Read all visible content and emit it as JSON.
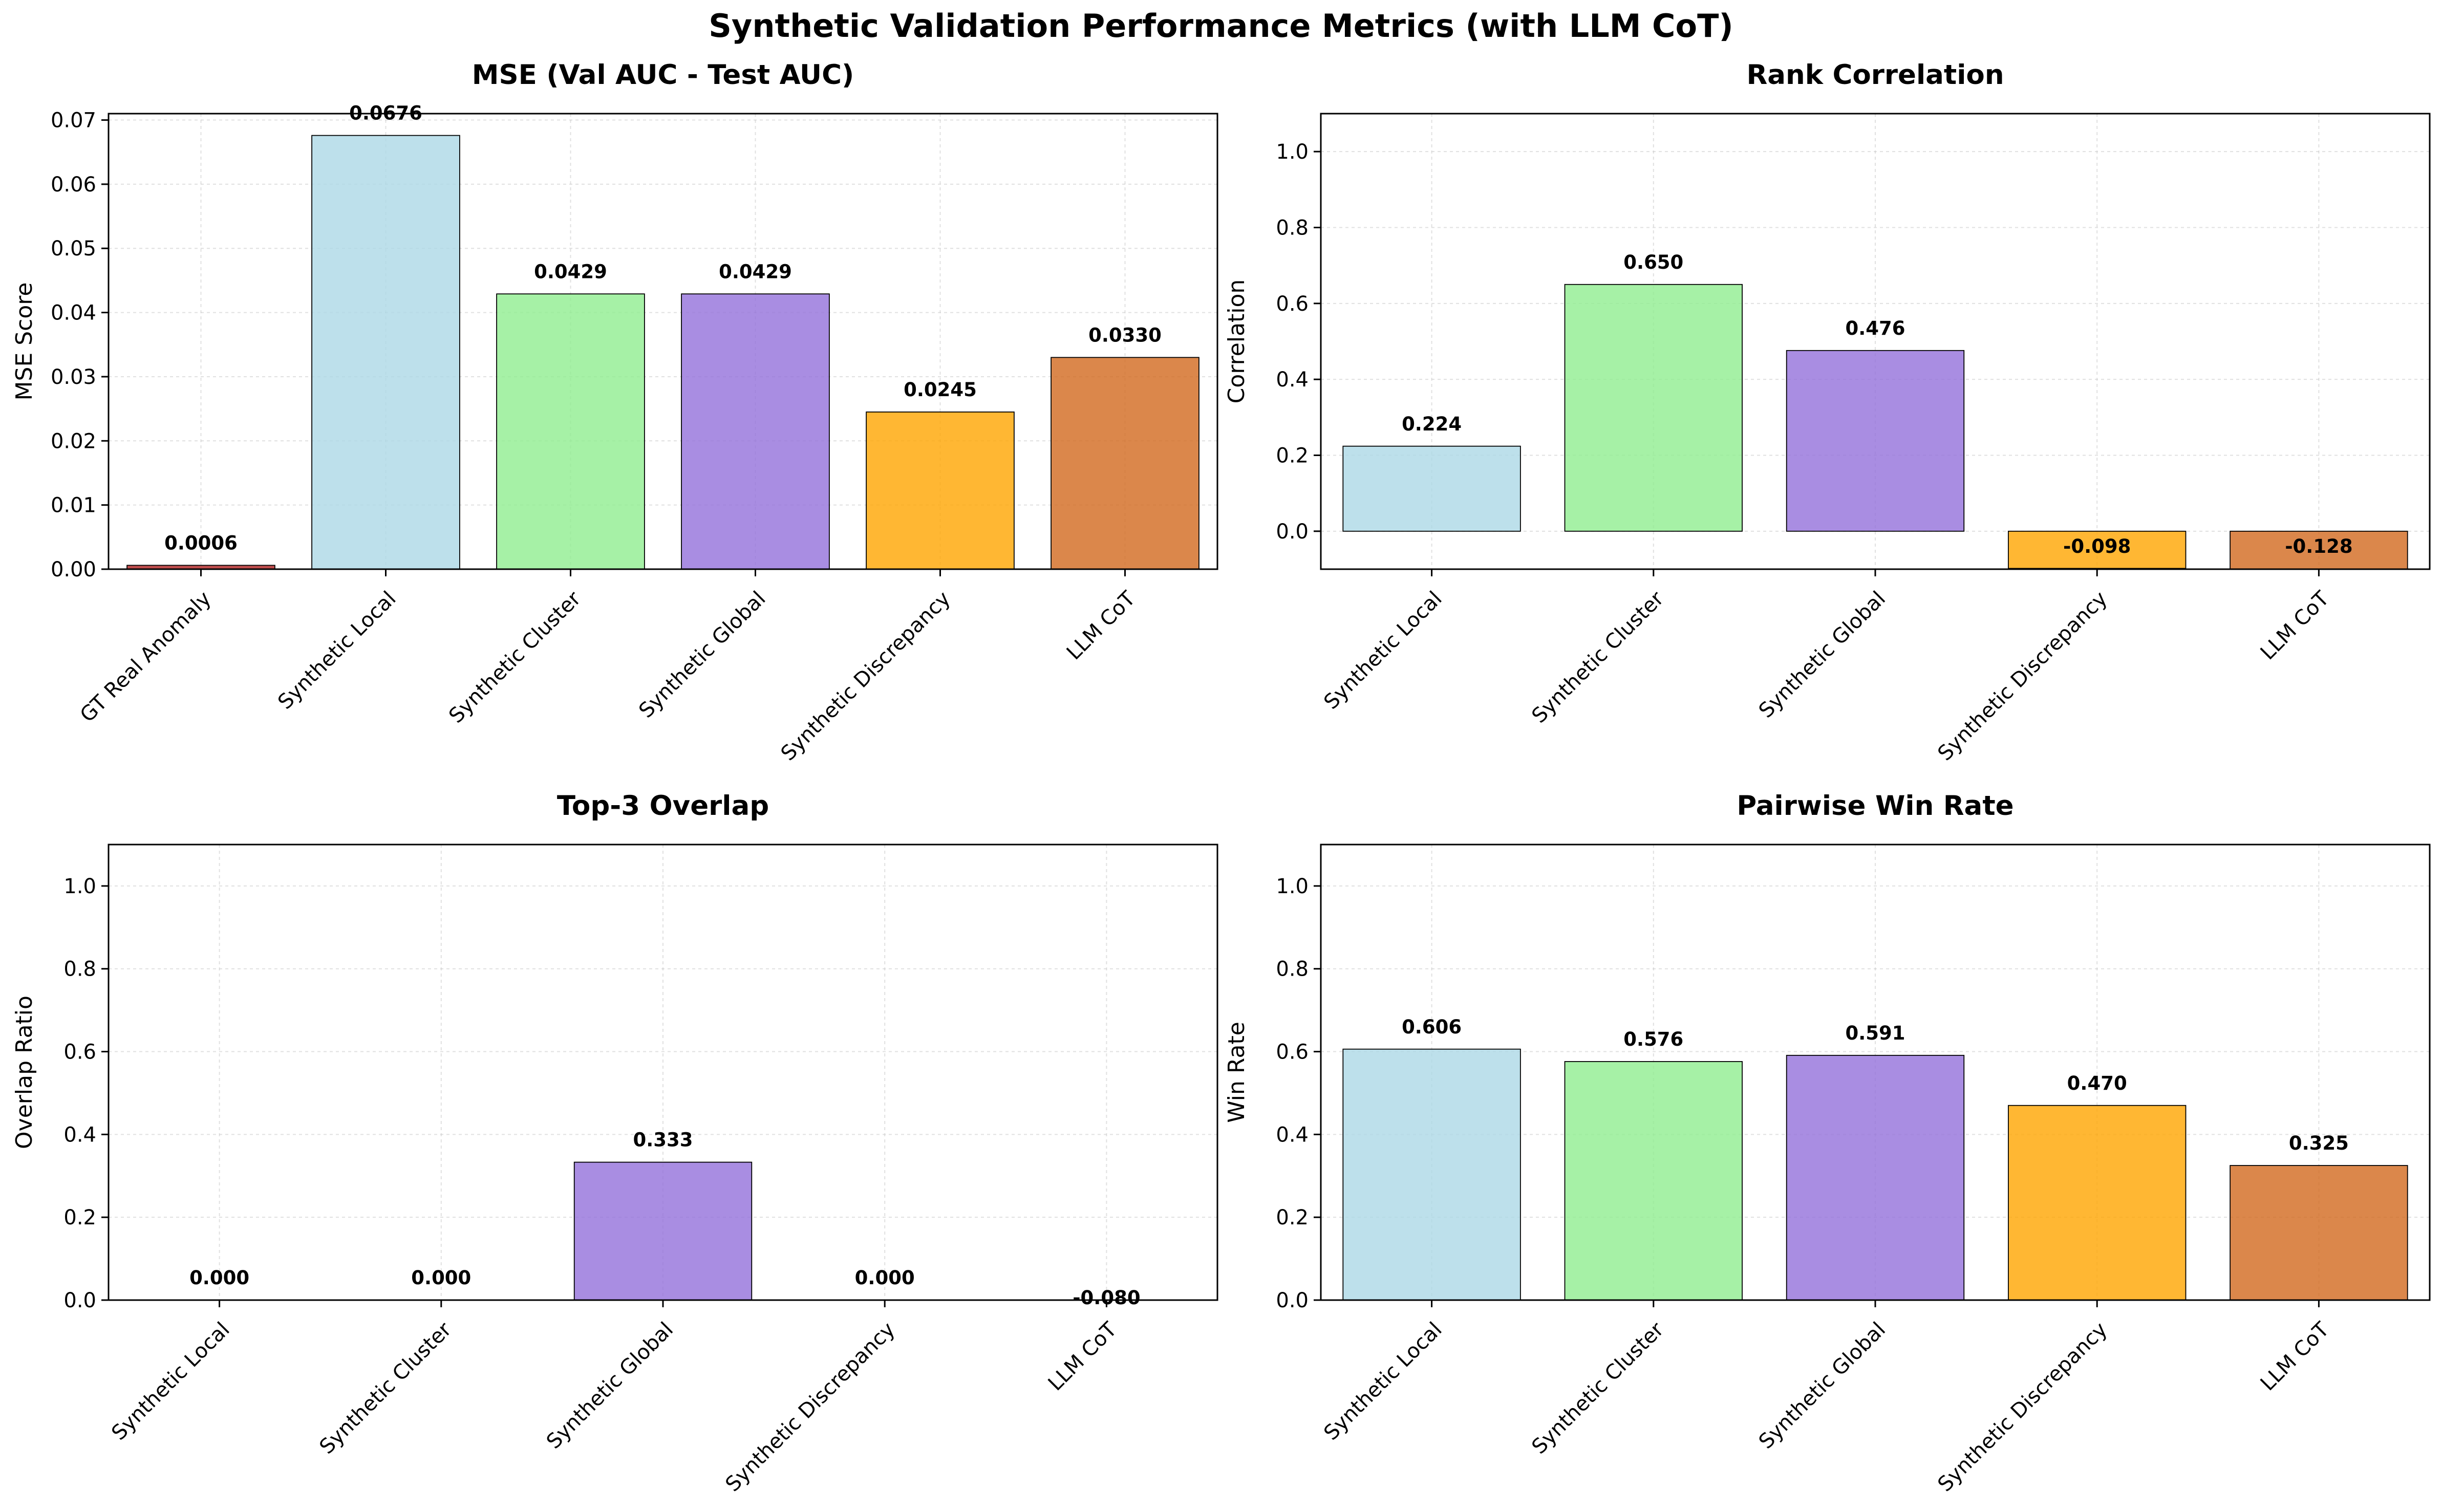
{
  "figure": {
    "title": "Synthetic Validation Performance Metrics (with LLM CoT)"
  },
  "colors": {
    "GT Real Anomaly": "#b22222",
    "Synthetic Local": "#add8e6",
    "Synthetic Cluster": "#90ee90",
    "Synthetic Global": "#9370db",
    "Synthetic Discrepancy": "#ffa500",
    "LLM CoT": "#d2691e",
    "edge": "#000000",
    "grid": "#cccccc"
  },
  "chart_data": [
    {
      "type": "bar",
      "title": "MSE (Val AUC - Test AUC)",
      "ylabel": "MSE Score",
      "xlabel": "",
      "categories": [
        "GT Real Anomaly",
        "Synthetic Local",
        "Synthetic Cluster",
        "Synthetic Global",
        "Synthetic Discrepancy",
        "LLM CoT"
      ],
      "values": [
        0.0006,
        0.0676,
        0.0429,
        0.0429,
        0.0245,
        0.033
      ],
      "labels": [
        "0.0006",
        "0.0676",
        "0.0429",
        "0.0429",
        "0.0245",
        "0.0330"
      ],
      "ylim": [
        0,
        0.071
      ],
      "yticks": [
        0.0,
        0.01,
        0.02,
        0.03,
        0.04,
        0.05,
        0.06,
        0.07
      ],
      "ytick_labels": [
        "0.00",
        "0.01",
        "0.02",
        "0.03",
        "0.04",
        "0.05",
        "0.06",
        "0.07"
      ],
      "grid": true
    },
    {
      "type": "bar",
      "title": "Rank Correlation",
      "ylabel": "Correlation",
      "xlabel": "",
      "categories": [
        "Synthetic Local",
        "Synthetic Cluster",
        "Synthetic Global",
        "Synthetic Discrepancy",
        "LLM CoT"
      ],
      "values": [
        0.224,
        0.65,
        0.476,
        -0.098,
        -0.128
      ],
      "labels": [
        "0.224",
        "0.650",
        "0.476",
        "-0.098",
        "-0.128"
      ],
      "ylim": [
        -0.1,
        1.1
      ],
      "yticks": [
        0.0,
        0.2,
        0.4,
        0.6,
        0.8,
        1.0
      ],
      "ytick_labels": [
        "0.0",
        "0.2",
        "0.4",
        "0.6",
        "0.8",
        "1.0"
      ],
      "grid": true
    },
    {
      "type": "bar",
      "title": "Top-3 Overlap",
      "ylabel": "Overlap Ratio",
      "xlabel": "",
      "categories": [
        "Synthetic Local",
        "Synthetic Cluster",
        "Synthetic Global",
        "Synthetic Discrepancy",
        "LLM CoT"
      ],
      "values": [
        0.0,
        0.0,
        0.333,
        0.0,
        -0.08
      ],
      "labels": [
        "0.000",
        "0.000",
        "0.333",
        "0.000",
        "-0.080"
      ],
      "ylim": [
        0,
        1.1
      ],
      "yticks": [
        0.0,
        0.2,
        0.4,
        0.6,
        0.8,
        1.0
      ],
      "ytick_labels": [
        "0.0",
        "0.2",
        "0.4",
        "0.6",
        "0.8",
        "1.0"
      ],
      "grid": true
    },
    {
      "type": "bar",
      "title": "Pairwise Win Rate",
      "ylabel": "Win Rate",
      "xlabel": "",
      "categories": [
        "Synthetic Local",
        "Synthetic Cluster",
        "Synthetic Global",
        "Synthetic Discrepancy",
        "LLM CoT"
      ],
      "values": [
        0.606,
        0.576,
        0.591,
        0.47,
        0.325
      ],
      "labels": [
        "0.606",
        "0.576",
        "0.591",
        "0.470",
        "0.325"
      ],
      "ylim": [
        0,
        1.1
      ],
      "yticks": [
        0.0,
        0.2,
        0.4,
        0.6,
        0.8,
        1.0
      ],
      "ytick_labels": [
        "0.0",
        "0.2",
        "0.4",
        "0.6",
        "0.8",
        "1.0"
      ],
      "grid": true
    }
  ]
}
